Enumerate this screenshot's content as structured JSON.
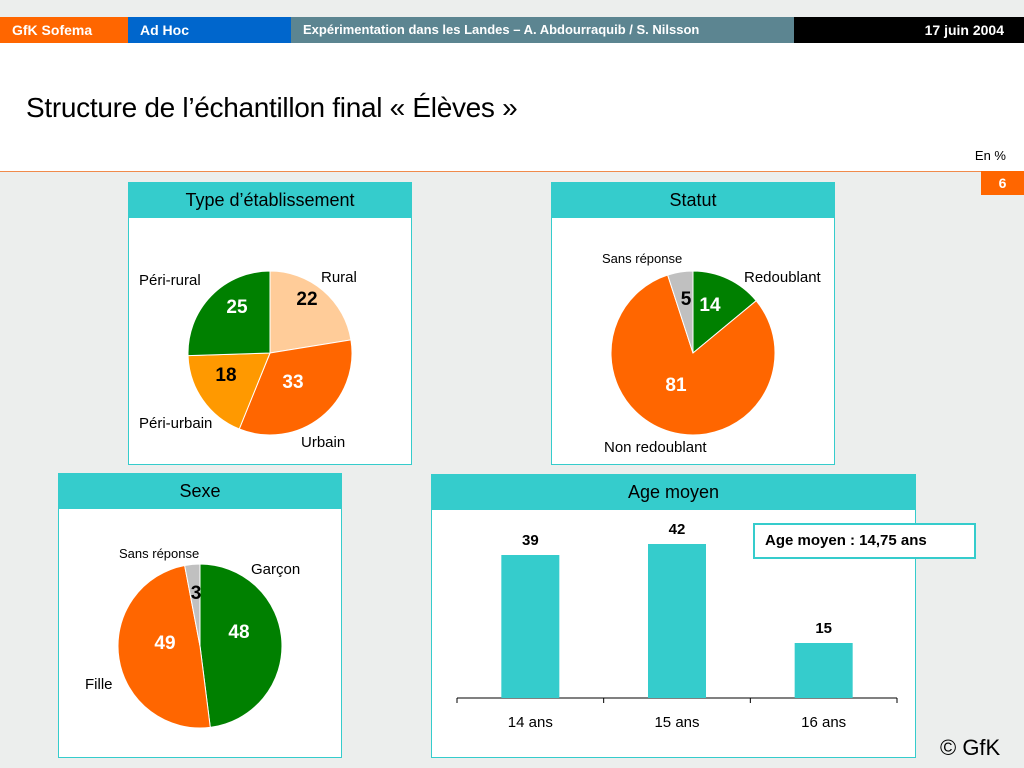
{
  "header": {
    "brand": "GfK Sofema",
    "section": "Ad Hoc",
    "title": "Expérimentation dans les Landes – A. Abdourraquib / S. Nilsson",
    "date": "17 juin 2004"
  },
  "page": {
    "title": "Structure de l’échantillon final « Élèves »",
    "unit": "En %",
    "number": "6",
    "copyright": "© GfK"
  },
  "annotation": "Age moyen : 14,75 ans",
  "colors": {
    "teal": "#35cccc",
    "green": "#008000",
    "orange": "#ff6600",
    "light_orange": "#ffcc99",
    "amber": "#ff9900",
    "grey": "#c0c0c0"
  },
  "chart_data": [
    {
      "type": "pie",
      "title": "Type d’établissement",
      "slices": [
        {
          "label": "Rural",
          "value": 22,
          "color": "#ffcc99",
          "text_color": "#000000"
        },
        {
          "label": "Urbain",
          "value": 33,
          "color": "#ff6600",
          "text_color": "#ffffff"
        },
        {
          "label": "Péri-urbain",
          "value": 18,
          "color": "#ff9900",
          "text_color": "#000000"
        },
        {
          "label": "Péri-rural",
          "value": 25,
          "color": "#008000",
          "text_color": "#ffffff"
        }
      ]
    },
    {
      "type": "pie",
      "title": "Statut",
      "slices": [
        {
          "label": "Redoublant",
          "value": 14,
          "color": "#008000",
          "text_color": "#ffffff"
        },
        {
          "label": "Non redoublant",
          "value": 81,
          "color": "#ff6600",
          "text_color": "#ffffff"
        },
        {
          "label": "Sans réponse",
          "value": 5,
          "color": "#c0c0c0",
          "text_color": "#000000"
        }
      ]
    },
    {
      "type": "pie",
      "title": "Sexe",
      "slices": [
        {
          "label": "Garçon",
          "value": 48,
          "color": "#008000",
          "text_color": "#ffffff"
        },
        {
          "label": "Fille",
          "value": 49,
          "color": "#ff6600",
          "text_color": "#ffffff"
        },
        {
          "label": "Sans réponse",
          "value": 3,
          "color": "#c0c0c0",
          "text_color": "#000000"
        }
      ]
    },
    {
      "type": "bar",
      "title": "Age moyen",
      "categories": [
        "14 ans",
        "15 ans",
        "16 ans"
      ],
      "values": [
        39,
        42,
        15
      ],
      "color": "#35cccc",
      "ylim": [
        0,
        45
      ]
    }
  ]
}
